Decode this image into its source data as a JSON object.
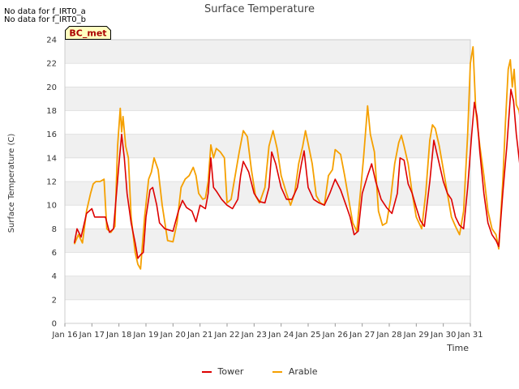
{
  "notes": [
    "No data for f_IRT0_a",
    "No data for f_IRT0_b"
  ],
  "station_label": "BC_met",
  "colors": {
    "tower": "#dd0000",
    "arable": "#f5a000",
    "band": "#f0f0f0",
    "grid": "#dddddd"
  },
  "chart_data": {
    "type": "line",
    "title": "Surface Temperature",
    "xlabel": "Time",
    "ylabel": "Surface Temperature (C)",
    "ylim": [
      0,
      24
    ],
    "yticks": [
      0,
      2,
      4,
      6,
      8,
      10,
      12,
      14,
      16,
      18,
      20,
      22,
      24
    ],
    "xlim": [
      "Jan 16",
      "Jan 31"
    ],
    "xticks": [
      "Jan 16",
      "Jan 17",
      "Jan 18",
      "Jan 19",
      "Jan 20",
      "Jan 21",
      "Jan 22",
      "Jan 23",
      "Jan 24",
      "Jan 25",
      "Jan 26",
      "Jan 27",
      "Jan 28",
      "Jan 29",
      "Jan 30",
      "Jan 31"
    ],
    "x_units": "days since Jan 16",
    "series": [
      {
        "name": "Tower",
        "points": [
          [
            0.35,
            6.8
          ],
          [
            0.45,
            8.0
          ],
          [
            0.6,
            7.3
          ],
          [
            0.8,
            9.3
          ],
          [
            1.0,
            9.7
          ],
          [
            1.1,
            9.0
          ],
          [
            1.5,
            9.0
          ],
          [
            1.65,
            7.7
          ],
          [
            1.8,
            8.0
          ],
          [
            2.0,
            13.5
          ],
          [
            2.1,
            16.0
          ],
          [
            2.2,
            14.0
          ],
          [
            2.3,
            11.0
          ],
          [
            2.45,
            8.5
          ],
          [
            2.6,
            6.8
          ],
          [
            2.7,
            5.5
          ],
          [
            2.8,
            5.8
          ],
          [
            2.9,
            6.0
          ],
          [
            3.0,
            9.0
          ],
          [
            3.15,
            11.3
          ],
          [
            3.25,
            11.5
          ],
          [
            3.4,
            10.0
          ],
          [
            3.5,
            8.5
          ],
          [
            3.7,
            8.0
          ],
          [
            4.0,
            7.8
          ],
          [
            4.2,
            9.5
          ],
          [
            4.35,
            10.4
          ],
          [
            4.5,
            9.8
          ],
          [
            4.7,
            9.5
          ],
          [
            4.85,
            8.6
          ],
          [
            5.0,
            10.0
          ],
          [
            5.2,
            9.7
          ],
          [
            5.3,
            11.0
          ],
          [
            5.4,
            14.0
          ],
          [
            5.5,
            11.5
          ],
          [
            5.6,
            11.2
          ],
          [
            5.8,
            10.5
          ],
          [
            6.0,
            10.0
          ],
          [
            6.2,
            9.7
          ],
          [
            6.4,
            10.5
          ],
          [
            6.5,
            12.5
          ],
          [
            6.6,
            13.7
          ],
          [
            6.8,
            12.8
          ],
          [
            7.0,
            11.0
          ],
          [
            7.2,
            10.3
          ],
          [
            7.4,
            10.2
          ],
          [
            7.55,
            11.5
          ],
          [
            7.65,
            14.5
          ],
          [
            7.8,
            13.5
          ],
          [
            8.0,
            11.5
          ],
          [
            8.2,
            10.5
          ],
          [
            8.4,
            10.5
          ],
          [
            8.6,
            11.5
          ],
          [
            8.75,
            13.5
          ],
          [
            8.85,
            14.6
          ],
          [
            9.0,
            11.5
          ],
          [
            9.2,
            10.5
          ],
          [
            9.4,
            10.2
          ],
          [
            9.6,
            10.0
          ],
          [
            9.8,
            11.0
          ],
          [
            10.0,
            12.2
          ],
          [
            10.2,
            11.3
          ],
          [
            10.4,
            10.0
          ],
          [
            10.55,
            9.0
          ],
          [
            10.7,
            7.5
          ],
          [
            10.85,
            7.8
          ],
          [
            11.0,
            11.0
          ],
          [
            11.2,
            12.5
          ],
          [
            11.35,
            13.5
          ],
          [
            11.5,
            12.0
          ],
          [
            11.7,
            10.5
          ],
          [
            11.9,
            9.8
          ],
          [
            12.1,
            9.3
          ],
          [
            12.3,
            11.0
          ],
          [
            12.4,
            14.0
          ],
          [
            12.55,
            13.8
          ],
          [
            12.7,
            11.8
          ],
          [
            12.85,
            11.0
          ],
          [
            13.0,
            9.8
          ],
          [
            13.15,
            8.7
          ],
          [
            13.3,
            8.2
          ],
          [
            13.5,
            12.0
          ],
          [
            13.65,
            15.5
          ],
          [
            13.8,
            14.0
          ],
          [
            14.0,
            12.0
          ],
          [
            14.15,
            11.0
          ],
          [
            14.3,
            10.5
          ],
          [
            14.45,
            9.0
          ],
          [
            14.6,
            8.3
          ],
          [
            14.75,
            8.0
          ],
          [
            14.9,
            11.5
          ],
          [
            15.05,
            16.0
          ],
          [
            15.15,
            18.7
          ],
          [
            15.25,
            17.5
          ],
          [
            15.35,
            14.5
          ],
          [
            15.5,
            11.0
          ],
          [
            15.65,
            8.5
          ],
          [
            15.8,
            7.5
          ],
          [
            15.95,
            7.0
          ],
          [
            16.05,
            6.5
          ],
          [
            16.2,
            11.0
          ],
          [
            16.35,
            15.0
          ],
          [
            16.5,
            19.8
          ],
          [
            16.6,
            18.8
          ],
          [
            16.7,
            16.0
          ],
          [
            16.85,
            13.0
          ],
          [
            17.0,
            11.8
          ]
        ]
      },
      {
        "name": "Arable",
        "points": [
          [
            0.35,
            6.7
          ],
          [
            0.5,
            7.5
          ],
          [
            0.65,
            6.8
          ],
          [
            0.8,
            9.5
          ],
          [
            0.95,
            11.0
          ],
          [
            1.05,
            11.8
          ],
          [
            1.15,
            12.0
          ],
          [
            1.3,
            12.0
          ],
          [
            1.45,
            12.2
          ],
          [
            1.55,
            8.0
          ],
          [
            1.7,
            7.7
          ],
          [
            1.85,
            8.2
          ],
          [
            1.95,
            15.0
          ],
          [
            2.05,
            18.2
          ],
          [
            2.1,
            16.2
          ],
          [
            2.15,
            17.5
          ],
          [
            2.25,
            15.0
          ],
          [
            2.35,
            14.0
          ],
          [
            2.45,
            9.0
          ],
          [
            2.6,
            6.0
          ],
          [
            2.7,
            5.0
          ],
          [
            2.8,
            4.6
          ],
          [
            2.95,
            9.0
          ],
          [
            3.1,
            12.2
          ],
          [
            3.2,
            12.8
          ],
          [
            3.3,
            14.0
          ],
          [
            3.45,
            13.0
          ],
          [
            3.6,
            10.0
          ],
          [
            3.8,
            7.0
          ],
          [
            4.0,
            6.9
          ],
          [
            4.15,
            8.5
          ],
          [
            4.3,
            11.5
          ],
          [
            4.45,
            12.2
          ],
          [
            4.6,
            12.5
          ],
          [
            4.75,
            13.2
          ],
          [
            4.85,
            12.5
          ],
          [
            4.95,
            11.0
          ],
          [
            5.1,
            10.5
          ],
          [
            5.2,
            10.6
          ],
          [
            5.3,
            12.0
          ],
          [
            5.4,
            15.1
          ],
          [
            5.5,
            14.0
          ],
          [
            5.6,
            14.8
          ],
          [
            5.75,
            14.5
          ],
          [
            5.9,
            14.0
          ],
          [
            6.0,
            10.2
          ],
          [
            6.15,
            10.5
          ],
          [
            6.3,
            12.5
          ],
          [
            6.45,
            14.5
          ],
          [
            6.6,
            16.3
          ],
          [
            6.75,
            15.8
          ],
          [
            6.9,
            13.0
          ],
          [
            7.05,
            10.8
          ],
          [
            7.2,
            10.2
          ],
          [
            7.4,
            11.5
          ],
          [
            7.55,
            15.0
          ],
          [
            7.7,
            16.3
          ],
          [
            7.85,
            14.8
          ],
          [
            8.0,
            12.5
          ],
          [
            8.2,
            11.0
          ],
          [
            8.35,
            10.0
          ],
          [
            8.5,
            11.0
          ],
          [
            8.65,
            13.5
          ],
          [
            8.8,
            15.0
          ],
          [
            8.9,
            16.3
          ],
          [
            9.0,
            15.2
          ],
          [
            9.15,
            13.5
          ],
          [
            9.3,
            10.8
          ],
          [
            9.45,
            10.2
          ],
          [
            9.6,
            10.0
          ],
          [
            9.75,
            12.5
          ],
          [
            9.9,
            13.0
          ],
          [
            10.0,
            14.7
          ],
          [
            10.2,
            14.3
          ],
          [
            10.35,
            12.5
          ],
          [
            10.5,
            10.5
          ],
          [
            10.65,
            8.5
          ],
          [
            10.8,
            7.8
          ],
          [
            10.95,
            11.5
          ],
          [
            11.05,
            14.0
          ],
          [
            11.2,
            18.4
          ],
          [
            11.3,
            16.0
          ],
          [
            11.45,
            14.5
          ],
          [
            11.6,
            9.5
          ],
          [
            11.75,
            8.3
          ],
          [
            11.9,
            8.5
          ],
          [
            12.05,
            10.5
          ],
          [
            12.2,
            13.5
          ],
          [
            12.35,
            15.3
          ],
          [
            12.45,
            15.9
          ],
          [
            12.55,
            15.0
          ],
          [
            12.7,
            13.5
          ],
          [
            12.85,
            11.0
          ],
          [
            13.0,
            9.0
          ],
          [
            13.2,
            8.0
          ],
          [
            13.35,
            11.0
          ],
          [
            13.5,
            15.5
          ],
          [
            13.6,
            16.8
          ],
          [
            13.7,
            16.5
          ],
          [
            13.85,
            15.0
          ],
          [
            14.0,
            13.0
          ],
          [
            14.15,
            11.0
          ],
          [
            14.3,
            9.0
          ],
          [
            14.45,
            8.2
          ],
          [
            14.6,
            7.5
          ],
          [
            14.75,
            9.5
          ],
          [
            14.9,
            16.0
          ],
          [
            15.0,
            22.0
          ],
          [
            15.1,
            23.4
          ],
          [
            15.2,
            18.0
          ],
          [
            15.35,
            15.0
          ],
          [
            15.5,
            12.5
          ],
          [
            15.65,
            9.5
          ],
          [
            15.8,
            8.0
          ],
          [
            15.95,
            7.5
          ],
          [
            16.05,
            6.3
          ],
          [
            16.2,
            12.0
          ],
          [
            16.3,
            17.0
          ],
          [
            16.4,
            21.5
          ],
          [
            16.48,
            22.3
          ],
          [
            16.55,
            20.0
          ],
          [
            16.62,
            21.5
          ],
          [
            16.7,
            18.5
          ],
          [
            16.8,
            18.0
          ],
          [
            16.9,
            16.5
          ],
          [
            17.0,
            15.0
          ]
        ]
      }
    ],
    "legend": {
      "position": "bottom-center",
      "entries": [
        "Tower",
        "Arable"
      ]
    },
    "grid": true
  }
}
